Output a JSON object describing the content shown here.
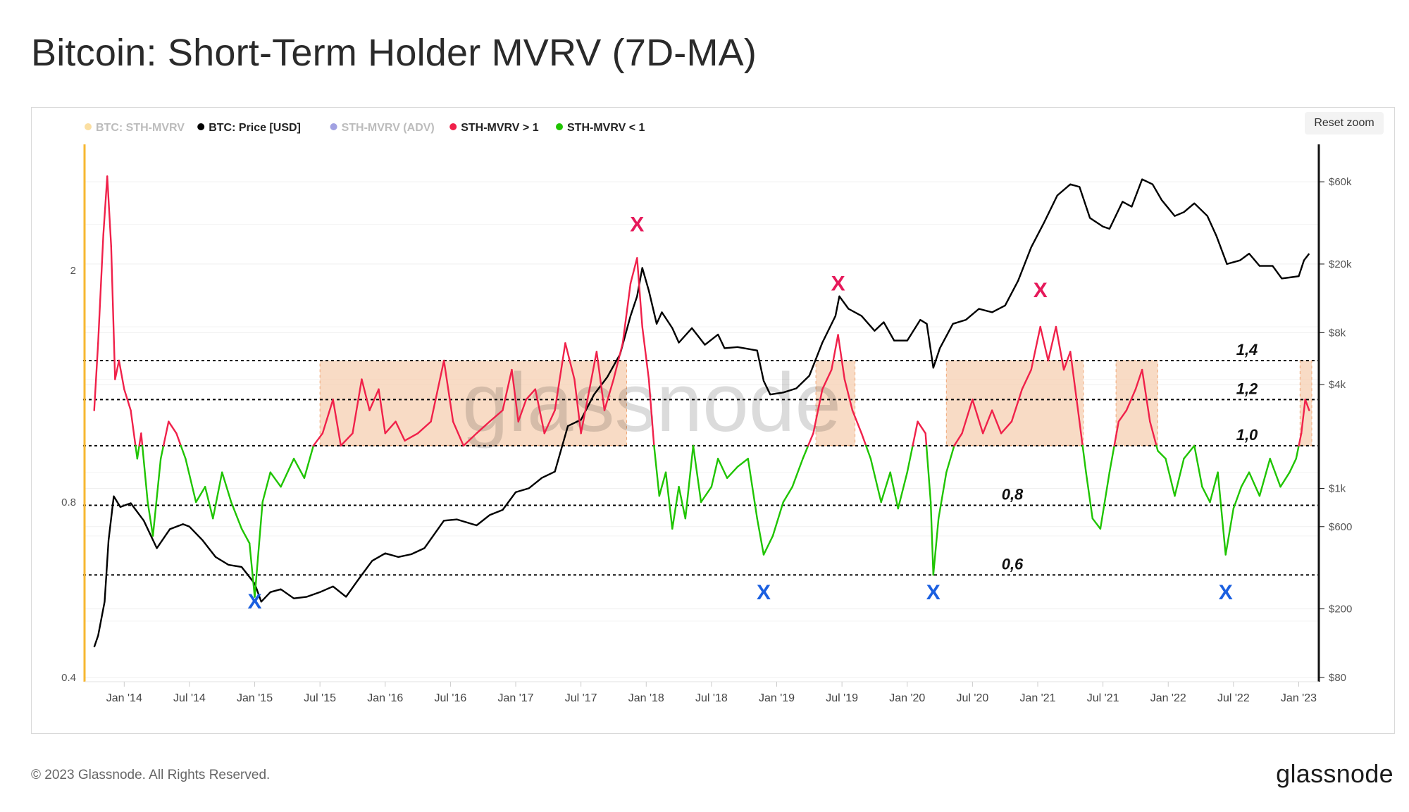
{
  "title": "Bitcoin: Short-Term Holder MVRV (7D-MA)",
  "reset_zoom_label": "Reset zoom",
  "footer": {
    "copyright": "© 2023 Glassnode. All Rights Reserved.",
    "brand": "glassnode",
    "watermark": "glassnode"
  },
  "colors": {
    "sth_mvrv": "#f7b731",
    "price": "#000000",
    "adv": "#2f2fbf",
    "above1": "#f0214a",
    "below1": "#1fc400",
    "band": "#f6cfb1",
    "marker_top": "#e6195a",
    "marker_bottom": "#1a5fe0"
  },
  "chart_data": {
    "type": "line",
    "legend": [
      {
        "label": "BTC: STH-MVRV",
        "color": "#f7b731",
        "muted": true
      },
      {
        "label": "BTC: Price [USD]",
        "color": "#000000",
        "muted": false
      },
      {
        "label": "STH-MVRV (ADV)",
        "color": "#2f2fbf",
        "muted": true
      },
      {
        "label": "STH-MVRV > 1",
        "color": "#f0214a",
        "muted": false
      },
      {
        "label": "STH-MVRV < 1",
        "color": "#1fc400",
        "muted": false
      }
    ],
    "x_range": [
      2013.75,
      2023.1
    ],
    "x_ticks": [
      {
        "label": "Jan '14",
        "t": 2014.0
      },
      {
        "label": "Jul '14",
        "t": 2014.5
      },
      {
        "label": "Jan '15",
        "t": 2015.0
      },
      {
        "label": "Jul '15",
        "t": 2015.5
      },
      {
        "label": "Jan '16",
        "t": 2016.0
      },
      {
        "label": "Jul '16",
        "t": 2016.5
      },
      {
        "label": "Jan '17",
        "t": 2017.0
      },
      {
        "label": "Jul '17",
        "t": 2017.5
      },
      {
        "label": "Jan '18",
        "t": 2018.0
      },
      {
        "label": "Jul '18",
        "t": 2018.5
      },
      {
        "label": "Jan '19",
        "t": 2019.0
      },
      {
        "label": "Jul '19",
        "t": 2019.5
      },
      {
        "label": "Jan '20",
        "t": 2020.0
      },
      {
        "label": "Jul '20",
        "t": 2020.5
      },
      {
        "label": "Jan '21",
        "t": 2021.0
      },
      {
        "label": "Jul '21",
        "t": 2021.5
      },
      {
        "label": "Jan '22",
        "t": 2022.0
      },
      {
        "label": "Jul '22",
        "t": 2022.5
      },
      {
        "label": "Jan '23",
        "t": 2023.0
      }
    ],
    "y_left": {
      "scale": "log",
      "range": [
        0.4,
        3.2
      ],
      "ticks": [
        {
          "label": "0.4",
          "v": 0.4
        },
        {
          "label": "0.8",
          "v": 0.8
        },
        {
          "label": "2",
          "v": 2
        }
      ]
    },
    "y_right": {
      "scale": "log",
      "range": [
        80,
        90000
      ],
      "ticks": [
        {
          "label": "$80",
          "v": 80
        },
        {
          "label": "$200",
          "v": 200
        },
        {
          "label": "$600",
          "v": 600
        },
        {
          "label": "$1k",
          "v": 1000
        },
        {
          "label": "$4k",
          "v": 4000
        },
        {
          "label": "$8k",
          "v": 8000
        },
        {
          "label": "$20k",
          "v": 20000
        },
        {
          "label": "$60k",
          "v": 60000
        }
      ]
    },
    "reference_lines": [
      {
        "label": "1,4",
        "v": 1.4
      },
      {
        "label": "1,2",
        "v": 1.2
      },
      {
        "label": "1,0",
        "v": 1.0
      },
      {
        "label": "0,8",
        "v": 0.79
      },
      {
        "label": "0,6",
        "v": 0.6
      }
    ],
    "shaded_ranges": [
      {
        "t0": 2015.5,
        "t1": 2017.85,
        "v0": 1.0,
        "v1": 1.4
      },
      {
        "t0": 2019.3,
        "t1": 2019.6,
        "v0": 1.0,
        "v1": 1.4
      },
      {
        "t0": 2020.3,
        "t1": 2021.35,
        "v0": 1.0,
        "v1": 1.4
      },
      {
        "t0": 2021.6,
        "t1": 2021.92,
        "v0": 1.0,
        "v1": 1.4
      },
      {
        "t0": 2023.01,
        "t1": 2023.1,
        "v0": 1.0,
        "v1": 1.4
      }
    ],
    "price_series": {
      "name": "BTC: Price [USD]",
      "points": [
        [
          2013.77,
          120
        ],
        [
          2013.8,
          140
        ],
        [
          2013.85,
          220
        ],
        [
          2013.88,
          500
        ],
        [
          2013.92,
          900
        ],
        [
          2013.97,
          780
        ],
        [
          2014.05,
          820
        ],
        [
          2014.15,
          650
        ],
        [
          2014.25,
          450
        ],
        [
          2014.35,
          580
        ],
        [
          2014.45,
          620
        ],
        [
          2014.5,
          600
        ],
        [
          2014.6,
          500
        ],
        [
          2014.7,
          400
        ],
        [
          2014.8,
          360
        ],
        [
          2014.9,
          350
        ],
        [
          2015.0,
          280
        ],
        [
          2015.05,
          220
        ],
        [
          2015.12,
          250
        ],
        [
          2015.2,
          260
        ],
        [
          2015.3,
          230
        ],
        [
          2015.4,
          235
        ],
        [
          2015.5,
          250
        ],
        [
          2015.6,
          270
        ],
        [
          2015.7,
          235
        ],
        [
          2015.8,
          300
        ],
        [
          2015.9,
          380
        ],
        [
          2016.0,
          420
        ],
        [
          2016.1,
          400
        ],
        [
          2016.2,
          415
        ],
        [
          2016.3,
          450
        ],
        [
          2016.45,
          650
        ],
        [
          2016.55,
          660
        ],
        [
          2016.7,
          610
        ],
        [
          2016.8,
          700
        ],
        [
          2016.9,
          750
        ],
        [
          2017.0,
          950
        ],
        [
          2017.1,
          1000
        ],
        [
          2017.2,
          1150
        ],
        [
          2017.3,
          1250
        ],
        [
          2017.4,
          2300
        ],
        [
          2017.5,
          2500
        ],
        [
          2017.6,
          3500
        ],
        [
          2017.7,
          4400
        ],
        [
          2017.8,
          6000
        ],
        [
          2017.88,
          10000
        ],
        [
          2017.93,
          13000
        ],
        [
          2017.97,
          19000
        ],
        [
          2018.02,
          14000
        ],
        [
          2018.08,
          9000
        ],
        [
          2018.12,
          10500
        ],
        [
          2018.2,
          8500
        ],
        [
          2018.25,
          7000
        ],
        [
          2018.35,
          8500
        ],
        [
          2018.45,
          6800
        ],
        [
          2018.55,
          7800
        ],
        [
          2018.6,
          6500
        ],
        [
          2018.7,
          6600
        ],
        [
          2018.85,
          6300
        ],
        [
          2018.9,
          4200
        ],
        [
          2018.95,
          3500
        ],
        [
          2019.05,
          3600
        ],
        [
          2019.15,
          3800
        ],
        [
          2019.25,
          4500
        ],
        [
          2019.35,
          7000
        ],
        [
          2019.45,
          10000
        ],
        [
          2019.48,
          13000
        ],
        [
          2019.55,
          11000
        ],
        [
          2019.65,
          10000
        ],
        [
          2019.75,
          8200
        ],
        [
          2019.82,
          9200
        ],
        [
          2019.9,
          7200
        ],
        [
          2020.0,
          7200
        ],
        [
          2020.1,
          9500
        ],
        [
          2020.15,
          9000
        ],
        [
          2020.2,
          5000
        ],
        [
          2020.25,
          6500
        ],
        [
          2020.35,
          9000
        ],
        [
          2020.45,
          9500
        ],
        [
          2020.55,
          11000
        ],
        [
          2020.65,
          10500
        ],
        [
          2020.75,
          11500
        ],
        [
          2020.85,
          16000
        ],
        [
          2020.95,
          25000
        ],
        [
          2021.05,
          35000
        ],
        [
          2021.15,
          50000
        ],
        [
          2021.25,
          58000
        ],
        [
          2021.32,
          56000
        ],
        [
          2021.4,
          37000
        ],
        [
          2021.5,
          33000
        ],
        [
          2021.55,
          32000
        ],
        [
          2021.65,
          46000
        ],
        [
          2021.72,
          43000
        ],
        [
          2021.8,
          62000
        ],
        [
          2021.88,
          58000
        ],
        [
          2021.95,
          47000
        ],
        [
          2022.05,
          38000
        ],
        [
          2022.12,
          40000
        ],
        [
          2022.2,
          45000
        ],
        [
          2022.3,
          38000
        ],
        [
          2022.37,
          29000
        ],
        [
          2022.45,
          20000
        ],
        [
          2022.55,
          21000
        ],
        [
          2022.62,
          23000
        ],
        [
          2022.7,
          19500
        ],
        [
          2022.8,
          19500
        ],
        [
          2022.87,
          16500
        ],
        [
          2022.95,
          16800
        ],
        [
          2023.0,
          17000
        ],
        [
          2023.04,
          21000
        ],
        [
          2023.08,
          23000
        ]
      ]
    },
    "mvrv_series": {
      "name": "BTC: STH-MVRV",
      "points": [
        [
          2013.77,
          1.15
        ],
        [
          2013.8,
          1.5
        ],
        [
          2013.84,
          2.3
        ],
        [
          2013.87,
          2.9
        ],
        [
          2013.9,
          2.2
        ],
        [
          2013.93,
          1.3
        ],
        [
          2013.96,
          1.4
        ],
        [
          2014.0,
          1.25
        ],
        [
          2014.05,
          1.15
        ],
        [
          2014.1,
          0.95
        ],
        [
          2014.13,
          1.05
        ],
        [
          2014.18,
          0.8
        ],
        [
          2014.22,
          0.7
        ],
        [
          2014.28,
          0.95
        ],
        [
          2014.34,
          1.1
        ],
        [
          2014.4,
          1.05
        ],
        [
          2014.47,
          0.95
        ],
        [
          2014.55,
          0.8
        ],
        [
          2014.62,
          0.85
        ],
        [
          2014.68,
          0.75
        ],
        [
          2014.75,
          0.9
        ],
        [
          2014.82,
          0.8
        ],
        [
          2014.9,
          0.72
        ],
        [
          2014.96,
          0.68
        ],
        [
          2015.0,
          0.55
        ],
        [
          2015.06,
          0.8
        ],
        [
          2015.12,
          0.9
        ],
        [
          2015.2,
          0.85
        ],
        [
          2015.3,
          0.95
        ],
        [
          2015.38,
          0.88
        ],
        [
          2015.45,
          1.0
        ],
        [
          2015.52,
          1.05
        ],
        [
          2015.6,
          1.2
        ],
        [
          2015.66,
          1.0
        ],
        [
          2015.75,
          1.05
        ],
        [
          2015.82,
          1.3
        ],
        [
          2015.88,
          1.15
        ],
        [
          2015.95,
          1.25
        ],
        [
          2016.0,
          1.05
        ],
        [
          2016.08,
          1.1
        ],
        [
          2016.15,
          1.02
        ],
        [
          2016.25,
          1.05
        ],
        [
          2016.35,
          1.1
        ],
        [
          2016.45,
          1.4
        ],
        [
          2016.52,
          1.1
        ],
        [
          2016.6,
          1.0
        ],
        [
          2016.7,
          1.05
        ],
        [
          2016.8,
          1.1
        ],
        [
          2016.9,
          1.15
        ],
        [
          2016.97,
          1.35
        ],
        [
          2017.02,
          1.1
        ],
        [
          2017.08,
          1.2
        ],
        [
          2017.15,
          1.25
        ],
        [
          2017.22,
          1.05
        ],
        [
          2017.3,
          1.15
        ],
        [
          2017.38,
          1.5
        ],
        [
          2017.45,
          1.3
        ],
        [
          2017.5,
          1.05
        ],
        [
          2017.55,
          1.2
        ],
        [
          2017.62,
          1.45
        ],
        [
          2017.68,
          1.15
        ],
        [
          2017.75,
          1.3
        ],
        [
          2017.82,
          1.5
        ],
        [
          2017.88,
          1.9
        ],
        [
          2017.93,
          2.1
        ],
        [
          2017.97,
          1.6
        ],
        [
          2018.02,
          1.3
        ],
        [
          2018.06,
          1.0
        ],
        [
          2018.1,
          0.82
        ],
        [
          2018.15,
          0.9
        ],
        [
          2018.2,
          0.72
        ],
        [
          2018.25,
          0.85
        ],
        [
          2018.3,
          0.75
        ],
        [
          2018.36,
          1.0
        ],
        [
          2018.42,
          0.8
        ],
        [
          2018.5,
          0.85
        ],
        [
          2018.55,
          0.95
        ],
        [
          2018.62,
          0.88
        ],
        [
          2018.7,
          0.92
        ],
        [
          2018.78,
          0.95
        ],
        [
          2018.85,
          0.75
        ],
        [
          2018.9,
          0.65
        ],
        [
          2018.97,
          0.7
        ],
        [
          2019.05,
          0.8
        ],
        [
          2019.12,
          0.85
        ],
        [
          2019.2,
          0.95
        ],
        [
          2019.28,
          1.05
        ],
        [
          2019.35,
          1.25
        ],
        [
          2019.42,
          1.35
        ],
        [
          2019.47,
          1.55
        ],
        [
          2019.52,
          1.3
        ],
        [
          2019.58,
          1.15
        ],
        [
          2019.65,
          1.05
        ],
        [
          2019.72,
          0.95
        ],
        [
          2019.8,
          0.8
        ],
        [
          2019.87,
          0.9
        ],
        [
          2019.93,
          0.78
        ],
        [
          2020.0,
          0.9
        ],
        [
          2020.08,
          1.1
        ],
        [
          2020.14,
          1.05
        ],
        [
          2020.18,
          0.8
        ],
        [
          2020.2,
          0.6
        ],
        [
          2020.24,
          0.75
        ],
        [
          2020.3,
          0.9
        ],
        [
          2020.36,
          1.0
        ],
        [
          2020.42,
          1.05
        ],
        [
          2020.5,
          1.2
        ],
        [
          2020.58,
          1.05
        ],
        [
          2020.65,
          1.15
        ],
        [
          2020.72,
          1.05
        ],
        [
          2020.8,
          1.1
        ],
        [
          2020.88,
          1.25
        ],
        [
          2020.95,
          1.35
        ],
        [
          2021.02,
          1.6
        ],
        [
          2021.08,
          1.4
        ],
        [
          2021.14,
          1.6
        ],
        [
          2021.2,
          1.35
        ],
        [
          2021.25,
          1.45
        ],
        [
          2021.32,
          1.1
        ],
        [
          2021.37,
          0.9
        ],
        [
          2021.42,
          0.75
        ],
        [
          2021.48,
          0.72
        ],
        [
          2021.55,
          0.9
        ],
        [
          2021.62,
          1.1
        ],
        [
          2021.68,
          1.15
        ],
        [
          2021.75,
          1.25
        ],
        [
          2021.8,
          1.35
        ],
        [
          2021.86,
          1.1
        ],
        [
          2021.92,
          0.98
        ],
        [
          2021.98,
          0.95
        ],
        [
          2022.05,
          0.82
        ],
        [
          2022.12,
          0.95
        ],
        [
          2022.2,
          1.0
        ],
        [
          2022.26,
          0.85
        ],
        [
          2022.32,
          0.8
        ],
        [
          2022.38,
          0.9
        ],
        [
          2022.44,
          0.65
        ],
        [
          2022.5,
          0.78
        ],
        [
          2022.56,
          0.85
        ],
        [
          2022.62,
          0.9
        ],
        [
          2022.7,
          0.82
        ],
        [
          2022.78,
          0.95
        ],
        [
          2022.86,
          0.85
        ],
        [
          2022.93,
          0.9
        ],
        [
          2022.98,
          0.95
        ],
        [
          2023.02,
          1.05
        ],
        [
          2023.05,
          1.2
        ],
        [
          2023.08,
          1.15
        ]
      ]
    },
    "annotations": [
      {
        "label": "X",
        "type": "top",
        "t": 2017.93,
        "v": 2.4
      },
      {
        "label": "X",
        "type": "top",
        "t": 2019.47,
        "v": 1.9
      },
      {
        "label": "X",
        "type": "top",
        "t": 2021.02,
        "v": 1.85
      },
      {
        "label": "X",
        "type": "bottom",
        "t": 2015.0,
        "v": 0.54
      },
      {
        "label": "X",
        "type": "bottom",
        "t": 2018.9,
        "v": 0.56
      },
      {
        "label": "X",
        "type": "bottom",
        "t": 2020.2,
        "v": 0.56
      },
      {
        "label": "X",
        "type": "bottom",
        "t": 2022.44,
        "v": 0.56
      }
    ]
  }
}
